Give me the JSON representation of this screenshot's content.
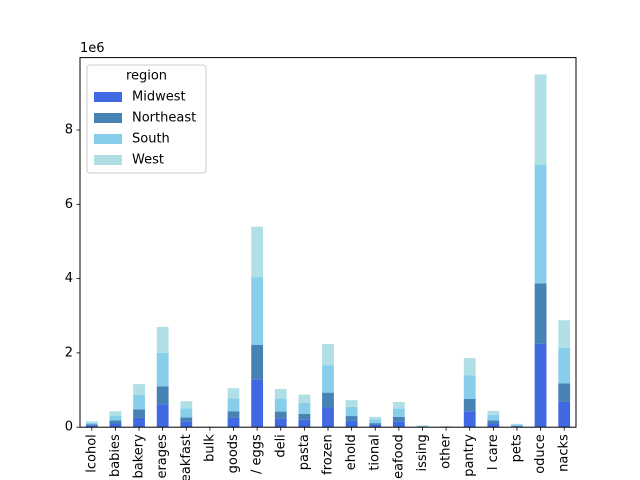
{
  "chart_data": {
    "type": "bar",
    "stacked": true,
    "scale_label": "1e6",
    "ylim": [
      0,
      9950000
    ],
    "yticks": [
      0,
      2000000,
      4000000,
      6000000,
      8000000
    ],
    "ytick_labels": [
      "0",
      "2",
      "4",
      "6",
      "8"
    ],
    "categories": [
      "alcohol",
      "babies",
      "bakery",
      "beverages",
      "breakfast",
      "bulk",
      "canned goods",
      "dairy eggs",
      "deli",
      "dry goods pasta",
      "frozen",
      "household",
      "international",
      "meat seafood",
      "missing",
      "other",
      "pantry",
      "personal care",
      "pets",
      "produce",
      "snacks"
    ],
    "category_labels": [
      "lcohol",
      "babies",
      "bakery",
      "erages",
      "eakfast",
      "bulk",
      "goods",
      "/ eggs",
      "deli",
      "pasta",
      "frozen",
      "ehold",
      "tional",
      "eafood",
      "issing",
      "other",
      "pantry",
      "l care",
      "pets",
      "oduce",
      "nacks"
    ],
    "legend": {
      "title": "region",
      "position": "upper left"
    },
    "series": [
      {
        "name": "Midwest",
        "color": "#4169e1",
        "values": [
          50000,
          100000,
          250000,
          620000,
          150000,
          5000,
          250000,
          1290000,
          240000,
          200000,
          530000,
          170000,
          60000,
          160000,
          10000,
          7000,
          430000,
          100000,
          25000,
          2250000,
          680000
        ]
      },
      {
        "name": "Northeast",
        "color": "#4682b4",
        "values": [
          30000,
          80000,
          230000,
          480000,
          110000,
          3000,
          180000,
          930000,
          180000,
          160000,
          400000,
          130000,
          50000,
          120000,
          10000,
          5000,
          330000,
          80000,
          15000,
          1620000,
          500000
        ]
      },
      {
        "name": "South",
        "color": "#87ceeb",
        "values": [
          40000,
          130000,
          390000,
          900000,
          250000,
          5000,
          350000,
          1820000,
          350000,
          300000,
          740000,
          250000,
          100000,
          220000,
          20000,
          8000,
          640000,
          150000,
          30000,
          3200000,
          960000
        ]
      },
      {
        "name": "West",
        "color": "#b0e0e6",
        "values": [
          40000,
          120000,
          290000,
          700000,
          190000,
          4000,
          270000,
          1360000,
          260000,
          220000,
          570000,
          180000,
          70000,
          180000,
          10000,
          6000,
          460000,
          110000,
          20000,
          2430000,
          740000
        ]
      }
    ]
  }
}
